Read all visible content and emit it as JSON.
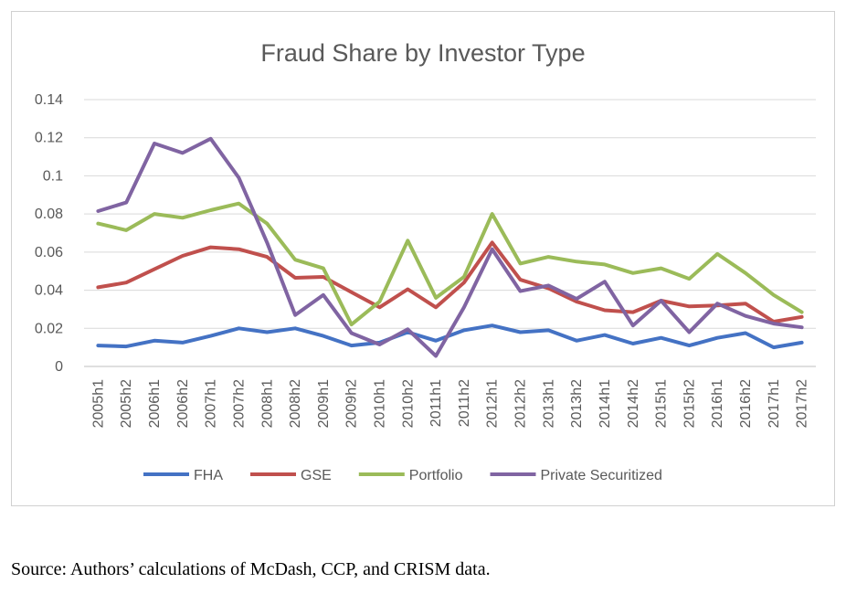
{
  "chart_data": {
    "type": "line",
    "title": "Fraud Share by Investor Type",
    "xlabel": "",
    "ylabel": "",
    "ylim": [
      0,
      0.14
    ],
    "yticks": [
      "0",
      "0.02",
      "0.04",
      "0.06",
      "0.08",
      "0.1",
      "0.12",
      "0.14"
    ],
    "grid": true,
    "legend_position": "bottom",
    "categories": [
      "2005h1",
      "2005h2",
      "2006h1",
      "2006h2",
      "2007h1",
      "2007h2",
      "2008h1",
      "2008h2",
      "2009h1",
      "2009h2",
      "2010h1",
      "2010h2",
      "2011h1",
      "2011h2",
      "2012h1",
      "2012h2",
      "2013h1",
      "2013h2",
      "2014h1",
      "2014h2",
      "2015h1",
      "2015h2",
      "2016h1",
      "2016h2",
      "2017h1",
      "2017h2"
    ],
    "series": [
      {
        "name": "FHA",
        "color": "#4472C4",
        "values": [
          0.011,
          0.0105,
          0.0135,
          0.0125,
          0.016,
          0.02,
          0.018,
          0.02,
          0.016,
          0.011,
          0.0125,
          0.018,
          0.0135,
          0.019,
          0.0215,
          0.018,
          0.019,
          0.0135,
          0.0165,
          0.012,
          0.015,
          0.011,
          0.015,
          0.0175,
          0.01,
          0.0125
        ]
      },
      {
        "name": "GSE",
        "color": "#C0504D",
        "values": [
          0.0415,
          0.044,
          0.051,
          0.058,
          0.0625,
          0.0615,
          0.0575,
          0.0465,
          0.047,
          0.039,
          0.031,
          0.0405,
          0.031,
          0.044,
          0.065,
          0.0455,
          0.041,
          0.034,
          0.0295,
          0.0285,
          0.0345,
          0.0315,
          0.032,
          0.033,
          0.0235,
          0.026
        ]
      },
      {
        "name": "Portfolio",
        "color": "#9BBB59",
        "values": [
          0.075,
          0.0715,
          0.08,
          0.078,
          0.082,
          0.0855,
          0.075,
          0.056,
          0.0515,
          0.022,
          0.034,
          0.066,
          0.036,
          0.047,
          0.08,
          0.054,
          0.0575,
          0.055,
          0.0535,
          0.049,
          0.0515,
          0.046,
          0.059,
          0.049,
          0.0375,
          0.0285
        ]
      },
      {
        "name": "Private Securitized",
        "color": "#8064A2",
        "values": [
          0.0815,
          0.086,
          0.117,
          0.112,
          0.1195,
          0.099,
          0.065,
          0.027,
          0.0375,
          0.0175,
          0.0115,
          0.0195,
          0.0055,
          0.031,
          0.0615,
          0.0395,
          0.0425,
          0.0355,
          0.0445,
          0.0215,
          0.0345,
          0.018,
          0.033,
          0.0265,
          0.0225,
          0.0205
        ]
      }
    ]
  },
  "source": "Source: Authors’ calculations of McDash, CCP, and CRISM data."
}
